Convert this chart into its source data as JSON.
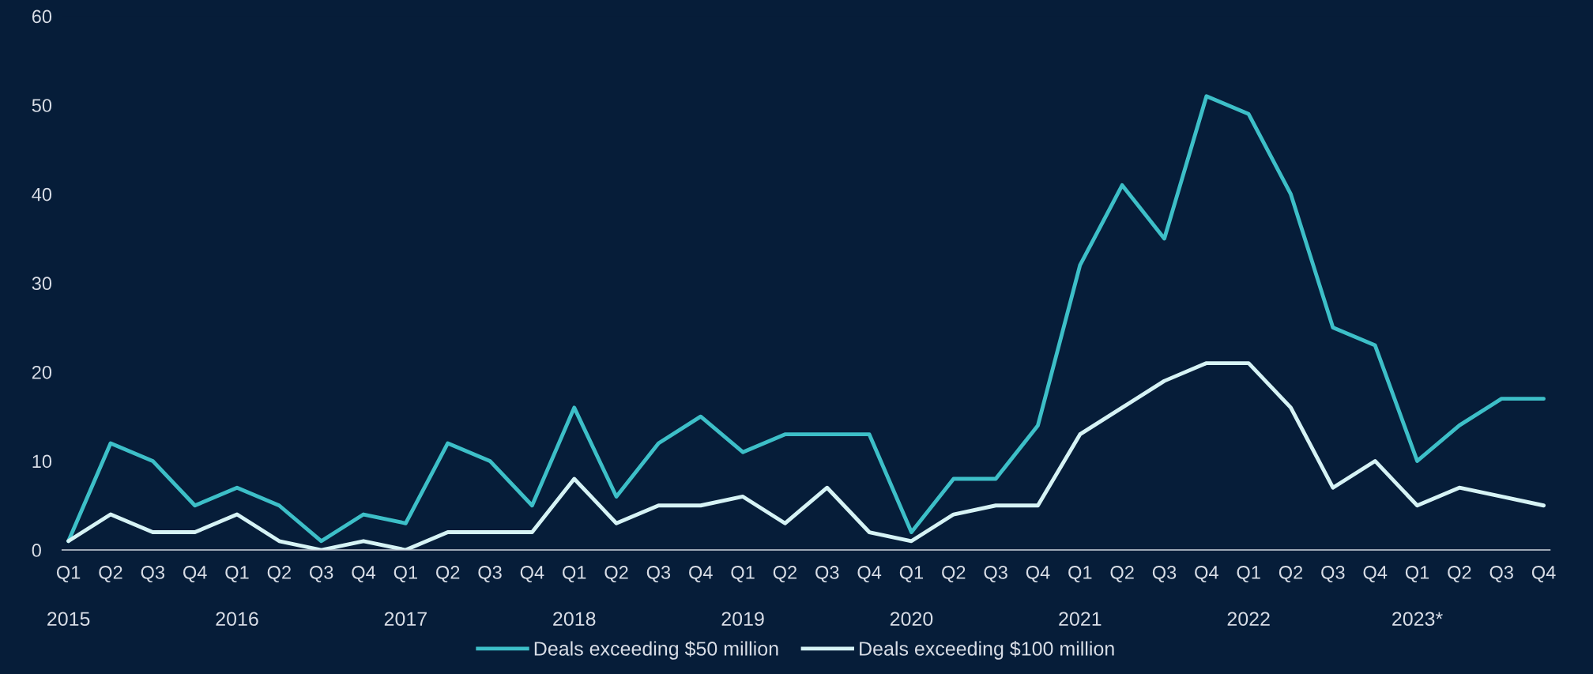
{
  "chart_data": {
    "type": "line",
    "categories": [
      "Q1",
      "Q2",
      "Q3",
      "Q4",
      "Q1",
      "Q2",
      "Q3",
      "Q4",
      "Q1",
      "Q2",
      "Q3",
      "Q4",
      "Q1",
      "Q2",
      "Q3",
      "Q4",
      "Q1",
      "Q2",
      "Q3",
      "Q4",
      "Q1",
      "Q2",
      "Q3",
      "Q4",
      "Q1",
      "Q2",
      "Q3",
      "Q4",
      "Q1",
      "Q2",
      "Q3",
      "Q4",
      "Q1",
      "Q2",
      "Q3",
      "Q4"
    ],
    "series": [
      {
        "name": "Deals exceeding $50 million",
        "color": "#3dbfc8",
        "values": [
          1,
          12,
          10,
          5,
          7,
          5,
          1,
          4,
          3,
          12,
          10,
          5,
          16,
          6,
          12,
          15,
          11,
          13,
          13,
          13,
          2,
          8,
          8,
          14,
          32,
          41,
          35,
          51,
          49,
          40,
          25,
          23,
          10,
          14,
          17,
          17
        ]
      },
      {
        "name": "Deals exceeding $100 million",
        "color": "#d6f3f5",
        "values": [
          1,
          4,
          2,
          2,
          4,
          1,
          0,
          1,
          0,
          2,
          2,
          2,
          8,
          3,
          5,
          5,
          6,
          3,
          7,
          2,
          1,
          4,
          5,
          5,
          13,
          16,
          19,
          21,
          21,
          16,
          7,
          10,
          5,
          7,
          6,
          5
        ]
      }
    ],
    "annotations": [
      "2015",
      "2016",
      "2017",
      "2018",
      "2019",
      "2020",
      "2021",
      "2022",
      "2023*"
    ],
    "ylim": [
      0,
      60
    ],
    "yticks": [
      0,
      10,
      20,
      30,
      40,
      50,
      60
    ],
    "grid": false,
    "legend": "bottom",
    "marker": "none",
    "line_style": "solid"
  }
}
